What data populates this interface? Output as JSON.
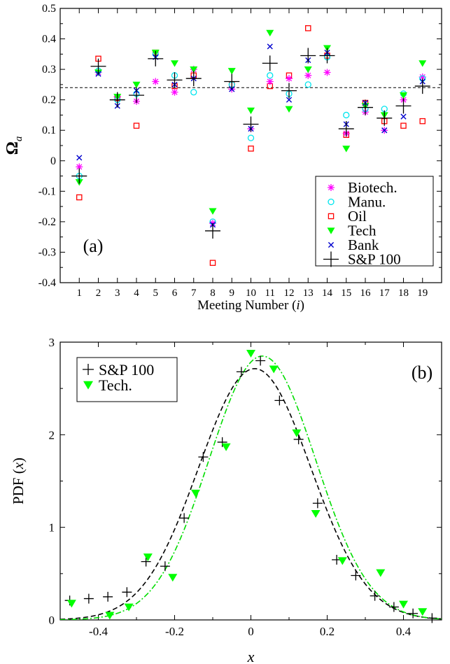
{
  "chart_data": [
    {
      "type": "scatter",
      "panel_label": "(a)",
      "xlabel": "Meeting Number",
      "xlabel_var": "i",
      "ylabel_main": "Ω",
      "ylabel_sub": "a",
      "xlim": [
        0,
        20
      ],
      "ylim": [
        -0.4,
        0.5
      ],
      "x_ticks": [
        1,
        2,
        3,
        4,
        5,
        6,
        7,
        8,
        9,
        10,
        11,
        12,
        13,
        14,
        15,
        16,
        17,
        18,
        19
      ],
      "y_ticks": [
        -0.4,
        -0.3,
        -0.2,
        -0.1,
        0,
        0.1,
        0.2,
        0.3,
        0.4,
        0.5
      ],
      "y_tick_labels": [
        "-0.4",
        "-0.3",
        "-0.2",
        "-0.1",
        "0",
        "0.1",
        "0.2",
        "0.3",
        "0.4",
        "0.5"
      ],
      "reference_line": {
        "y": 0.24,
        "style": "dashed"
      },
      "legend_position": "bottom-right",
      "series": [
        {
          "name": "Biotech.",
          "marker": "asterisk",
          "color": "#ff00ff",
          "x": [
            1,
            2,
            3,
            4,
            5,
            6,
            7,
            8,
            9,
            10,
            11,
            12,
            13,
            14,
            15,
            16,
            17,
            18,
            19
          ],
          "y": [
            -0.02,
            0.29,
            0.21,
            0.195,
            0.26,
            0.225,
            0.3,
            -0.205,
            0.235,
            0.105,
            0.26,
            0.27,
            0.28,
            0.29,
            0.09,
            0.16,
            0.1,
            0.2,
            0.275
          ]
        },
        {
          "name": "Manu.",
          "marker": "circle",
          "color": "#00e5ee",
          "x": [
            1,
            2,
            3,
            4,
            5,
            6,
            7,
            8,
            9,
            10,
            11,
            12,
            13,
            14,
            15,
            16,
            17,
            18,
            19
          ],
          "y": [
            -0.05,
            0.295,
            0.2,
            0.22,
            0.35,
            0.28,
            0.225,
            -0.2,
            0.25,
            0.075,
            0.28,
            0.22,
            0.25,
            0.34,
            0.15,
            0.17,
            0.17,
            0.22,
            0.27
          ]
        },
        {
          "name": "Oil",
          "marker": "square",
          "color": "#ff0000",
          "x": [
            1,
            2,
            3,
            4,
            5,
            6,
            7,
            8,
            9,
            10,
            11,
            12,
            13,
            14,
            15,
            16,
            17,
            18,
            19
          ],
          "y": [
            -0.12,
            0.335,
            0.205,
            0.115,
            0.355,
            0.245,
            0.28,
            -0.335,
            0.25,
            0.04,
            0.245,
            0.28,
            0.435,
            0.345,
            0.085,
            0.19,
            0.13,
            0.115,
            0.13
          ]
        },
        {
          "name": "Tech",
          "marker": "triangle-down",
          "color": "#00ff00",
          "x": [
            1,
            2,
            3,
            4,
            5,
            6,
            7,
            8,
            9,
            10,
            11,
            12,
            13,
            14,
            15,
            16,
            17,
            18,
            19
          ],
          "y": [
            -0.07,
            0.29,
            0.21,
            0.25,
            0.355,
            0.32,
            0.3,
            -0.165,
            0.295,
            0.165,
            0.42,
            0.17,
            0.3,
            0.37,
            0.04,
            0.18,
            0.15,
            0.215,
            0.32
          ]
        },
        {
          "name": "Bank",
          "marker": "x",
          "color": "#0000cd",
          "x": [
            1,
            2,
            3,
            4,
            5,
            6,
            7,
            8,
            9,
            10,
            11,
            12,
            13,
            14,
            15,
            16,
            17,
            18,
            19
          ],
          "y": [
            0.01,
            0.285,
            0.18,
            0.23,
            0.34,
            0.25,
            0.27,
            -0.21,
            0.235,
            0.105,
            0.375,
            0.2,
            0.33,
            0.355,
            0.12,
            0.19,
            0.1,
            0.145,
            0.26
          ]
        },
        {
          "name": "S&P 100",
          "marker": "plus",
          "color": "#000000",
          "x": [
            1,
            2,
            3,
            4,
            5,
            6,
            7,
            8,
            9,
            10,
            11,
            12,
            13,
            14,
            15,
            16,
            17,
            18,
            19
          ],
          "y": [
            -0.05,
            0.31,
            0.2,
            0.215,
            0.335,
            0.265,
            0.27,
            -0.23,
            0.26,
            0.12,
            0.32,
            0.23,
            0.345,
            0.345,
            0.105,
            0.175,
            0.14,
            0.18,
            0.245
          ]
        }
      ]
    },
    {
      "type": "scatter",
      "panel_label": "(b)",
      "xlabel": "x",
      "ylabel_prefix": "PDF (",
      "ylabel_var": "x",
      "ylabel_suffix": ")",
      "xlim": [
        -0.5,
        0.5
      ],
      "ylim": [
        0,
        3
      ],
      "x_ticks": [
        -0.4,
        -0.2,
        0,
        0.2,
        0.4
      ],
      "x_tick_labels": [
        "-0.4",
        "-0.2",
        "0",
        "0.2",
        "0.4"
      ],
      "y_ticks": [
        0,
        1,
        2,
        3
      ],
      "y_tick_labels": [
        "0",
        "1",
        "2",
        "3"
      ],
      "legend_position": "top-left",
      "series": [
        {
          "name": "S&P 100",
          "marker": "plus",
          "color": "#000000",
          "x": [
            -0.475,
            -0.425,
            -0.375,
            -0.325,
            -0.275,
            -0.225,
            -0.175,
            -0.125,
            -0.075,
            -0.025,
            0.025,
            0.075,
            0.125,
            0.175,
            0.225,
            0.275,
            0.325,
            0.375,
            0.425,
            0.475
          ],
          "y": [
            0.21,
            0.23,
            0.25,
            0.3,
            0.63,
            0.58,
            1.1,
            1.76,
            1.92,
            2.68,
            2.8,
            2.37,
            1.95,
            1.26,
            0.65,
            0.48,
            0.26,
            0.14,
            0.07,
            0.02
          ]
        },
        {
          "name": "Tech.",
          "marker": "triangle-down",
          "color": "#00ff00",
          "x": [
            -0.47,
            -0.37,
            -0.32,
            -0.27,
            -0.205,
            -0.145,
            -0.065,
            0.0,
            0.06,
            0.12,
            0.17,
            0.24,
            0.34,
            0.4,
            0.45
          ],
          "y": [
            0.18,
            0.05,
            0.14,
            0.68,
            0.46,
            1.37,
            1.87,
            2.88,
            2.71,
            2.02,
            1.15,
            0.64,
            0.51,
            0.17,
            0.09
          ]
        }
      ],
      "fit_curves": [
        {
          "for": "S&P 100",
          "style": "dashed",
          "color": "#000000",
          "mean": 0.01,
          "sigma": 0.147
        },
        {
          "for": "Tech.",
          "style": "dash-dot",
          "color": "#00dd00",
          "mean": 0.03,
          "sigma": 0.14
        }
      ]
    }
  ]
}
